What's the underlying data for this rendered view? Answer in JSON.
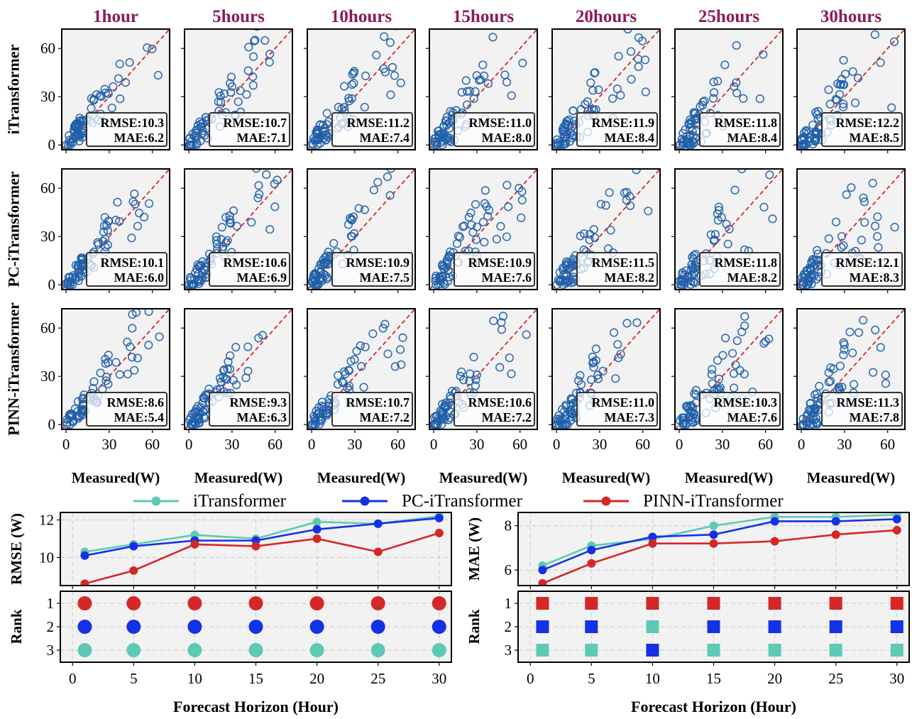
{
  "colors": {
    "title": "#8B1A5B",
    "panel_bg": "#f2f2f2",
    "marker": "#1f5fa8",
    "diagonal": "#d62728",
    "iTransformer": "#5ec9b5",
    "PC-iTransformer": "#1431e6",
    "PINN-iTransformer": "#d62728"
  },
  "legend": [
    "iTransformer",
    "PC-iTransformer",
    "PINN-iTransformer"
  ],
  "chart_data": [
    {
      "type": "scatter",
      "columns": [
        "1hour",
        "5hours",
        "10hours",
        "15hours",
        "20hours",
        "25hours",
        "30hours"
      ],
      "rows": [
        "iTransformer",
        "PC-iTransformer",
        "PINN-iTransformer"
      ],
      "xlabel": "Measured(W)",
      "xticks": [
        0,
        30,
        60
      ],
      "yticks": [
        0,
        30,
        60
      ],
      "xlim": [
        -3,
        72
      ],
      "ylim": [
        -3,
        72
      ],
      "diagonal": "y=x",
      "annotations": [
        [
          {
            "rmse": "RMSE:10.3",
            "mae": "MAE:6.2"
          },
          {
            "rmse": "RMSE:10.7",
            "mae": "MAE:7.1"
          },
          {
            "rmse": "RMSE:11.2",
            "mae": "MAE:7.4"
          },
          {
            "rmse": "RMSE:11.0",
            "mae": "MAE:8.0"
          },
          {
            "rmse": "RMSE:11.9",
            "mae": "MAE:8.4"
          },
          {
            "rmse": "RMSE:11.8",
            "mae": "MAE:8.4"
          },
          {
            "rmse": "RMSE:12.2",
            "mae": "MAE:8.5"
          }
        ],
        [
          {
            "rmse": "RMSE:10.1",
            "mae": "MAE:6.0"
          },
          {
            "rmse": "RMSE:10.6",
            "mae": "MAE:6.9"
          },
          {
            "rmse": "RMSE:10.9",
            "mae": "MAE:7.5"
          },
          {
            "rmse": "RMSE:10.9",
            "mae": "MAE:7.6"
          },
          {
            "rmse": "RMSE:11.5",
            "mae": "MAE:8.2"
          },
          {
            "rmse": "RMSE:11.8",
            "mae": "MAE:8.2"
          },
          {
            "rmse": "RMSE:12.1",
            "mae": "MAE:8.3"
          }
        ],
        [
          {
            "rmse": "RMSE:8.6",
            "mae": "MAE:5.4"
          },
          {
            "rmse": "RMSE:9.3",
            "mae": "MAE:6.3"
          },
          {
            "rmse": "RMSE:10.7",
            "mae": "MAE:7.2"
          },
          {
            "rmse": "RMSE:10.6",
            "mae": "MAE:7.2"
          },
          {
            "rmse": "RMSE:11.0",
            "mae": "MAE:7.3"
          },
          {
            "rmse": "RMSE:10.3",
            "mae": "MAE:7.6"
          },
          {
            "rmse": "RMSE:11.3",
            "mae": "MAE:7.8"
          }
        ]
      ]
    },
    {
      "type": "line",
      "ylabel": "RMSE (W)",
      "x": [
        1,
        5,
        10,
        15,
        20,
        25,
        30
      ],
      "xlim": [
        -1,
        31
      ],
      "ylim": [
        8.5,
        12.4
      ],
      "yticks": [
        10,
        12
      ],
      "series": [
        {
          "name": "iTransformer",
          "values": [
            10.3,
            10.7,
            11.2,
            11.0,
            11.9,
            11.8,
            12.2
          ]
        },
        {
          "name": "PC-iTransformer",
          "values": [
            10.1,
            10.6,
            10.9,
            10.9,
            11.5,
            11.8,
            12.1
          ]
        },
        {
          "name": "PINN-iTransformer",
          "values": [
            8.6,
            9.3,
            10.7,
            10.6,
            11.0,
            10.3,
            11.3
          ]
        }
      ]
    },
    {
      "type": "scatter",
      "ylabel": "Rank",
      "xlabel": "Forecast Horizon (Hour)",
      "marker": "circle",
      "x": [
        1,
        5,
        10,
        15,
        20,
        25,
        30
      ],
      "xlim": [
        -1,
        31
      ],
      "xticks": [
        0,
        5,
        10,
        15,
        20,
        25,
        30
      ],
      "yticks": [
        1,
        2,
        3
      ],
      "series": [
        {
          "name": "iTransformer",
          "values": [
            3,
            3,
            3,
            3,
            3,
            3,
            3
          ]
        },
        {
          "name": "PC-iTransformer",
          "values": [
            2,
            2,
            2,
            2,
            2,
            2,
            2
          ]
        },
        {
          "name": "PINN-iTransformer",
          "values": [
            1,
            1,
            1,
            1,
            1,
            1,
            1
          ]
        }
      ]
    },
    {
      "type": "line",
      "ylabel": "MAE (W)",
      "x": [
        1,
        5,
        10,
        15,
        20,
        25,
        30
      ],
      "xlim": [
        -1,
        31
      ],
      "ylim": [
        5.3,
        8.6
      ],
      "yticks": [
        6,
        8
      ],
      "series": [
        {
          "name": "iTransformer",
          "values": [
            6.2,
            7.1,
            7.4,
            8.0,
            8.4,
            8.4,
            8.5
          ]
        },
        {
          "name": "PC-iTransformer",
          "values": [
            6.0,
            6.9,
            7.5,
            7.6,
            8.2,
            8.2,
            8.3
          ]
        },
        {
          "name": "PINN-iTransformer",
          "values": [
            5.4,
            6.3,
            7.2,
            7.2,
            7.3,
            7.6,
            7.8
          ]
        }
      ]
    },
    {
      "type": "scatter",
      "ylabel": "Rank",
      "xlabel": "Forecast Horizon (Hour)",
      "marker": "square",
      "x": [
        1,
        5,
        10,
        15,
        20,
        25,
        30
      ],
      "xlim": [
        -1,
        31
      ],
      "xticks": [
        0,
        5,
        10,
        15,
        20,
        25,
        30
      ],
      "yticks": [
        1,
        2,
        3
      ],
      "series": [
        {
          "name": "iTransformer",
          "values": [
            3,
            3,
            2,
            3,
            3,
            3,
            3
          ]
        },
        {
          "name": "PC-iTransformer",
          "values": [
            2,
            2,
            3,
            2,
            2,
            2,
            2
          ]
        },
        {
          "name": "PINN-iTransformer",
          "values": [
            1,
            1,
            1,
            1,
            1,
            1,
            1
          ]
        }
      ]
    }
  ]
}
